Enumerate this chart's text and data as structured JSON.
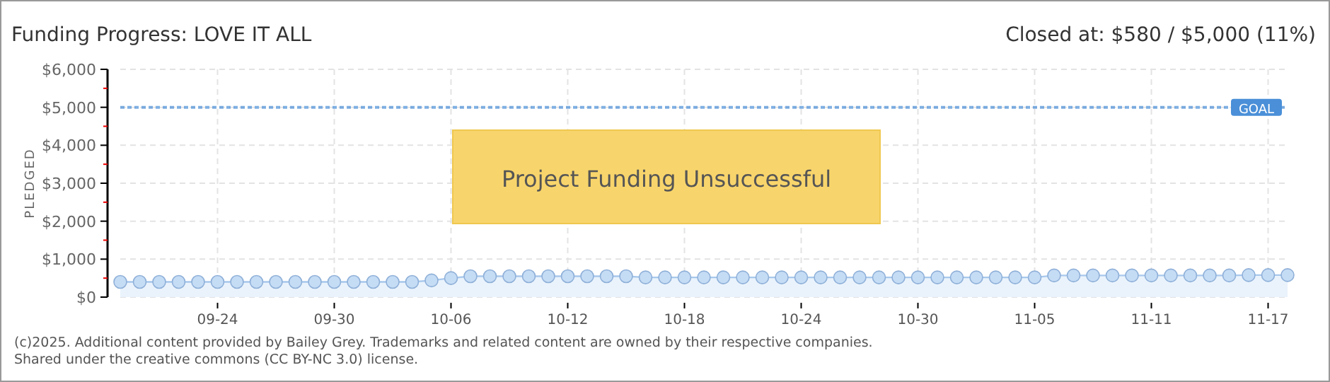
{
  "chart_data": {
    "type": "area",
    "title": "Funding Progress: LOVE IT ALL",
    "subtitle": "Closed at: $580 / $5,000 (11%)",
    "ylabel": "PLEDGED",
    "x": [
      "--09-19",
      "--09-20",
      "--09-21",
      "--09-22",
      "--09-23",
      "--09-24",
      "--09-25",
      "--09-26",
      "--09-27",
      "--09-28",
      "--09-29",
      "--09-30",
      "--10-01",
      "--10-02",
      "--10-03",
      "--10-04",
      "--10-05",
      "--10-06",
      "--10-07",
      "--10-08",
      "--10-09",
      "--10-10",
      "--10-11",
      "--10-12",
      "--10-13",
      "--10-14",
      "--10-15",
      "--10-16",
      "--10-17",
      "--10-18",
      "--10-19",
      "--10-20",
      "--10-21",
      "--10-22",
      "--10-23",
      "--10-24",
      "--10-25",
      "--10-26",
      "--10-27",
      "--10-28",
      "--10-29",
      "--10-30",
      "--10-31",
      "--11-01",
      "--11-02",
      "--11-03",
      "--11-04",
      "--11-05",
      "--11-06",
      "--11-07",
      "--11-08",
      "--11-09",
      "--11-10",
      "--11-11",
      "--11-12",
      "--11-13",
      "--11-14",
      "--11-15",
      "--11-16",
      "--11-17",
      "--11-18"
    ],
    "series": [
      {
        "color": "#c5dcf5",
        "values": [
          400,
          400,
          400,
          400,
          400,
          400,
          400,
          400,
          400,
          400,
          400,
          400,
          400,
          400,
          400,
          400,
          440,
          500,
          550,
          550,
          550,
          550,
          550,
          550,
          550,
          550,
          550,
          520,
          520,
          520,
          520,
          520,
          520,
          520,
          520,
          520,
          520,
          520,
          520,
          520,
          520,
          520,
          520,
          520,
          520,
          520,
          520,
          520,
          570,
          570,
          570,
          570,
          570,
          570,
          570,
          570,
          570,
          570,
          580,
          580,
          580
        ]
      }
    ],
    "xlim": [
      "--09-19",
      "--11-18"
    ],
    "xticks": [
      {
        "value": "--09-24",
        "label": "09-24"
      },
      {
        "value": "--09-30",
        "label": "09-30"
      },
      {
        "value": "--10-06",
        "label": "10-06"
      },
      {
        "value": "--10-12",
        "label": "10-12"
      },
      {
        "value": "--10-18",
        "label": "10-18"
      },
      {
        "value": "--10-24",
        "label": "10-24"
      },
      {
        "value": "--10-30",
        "label": "10-30"
      },
      {
        "value": "--11-05",
        "label": "11-05"
      },
      {
        "value": "--11-11",
        "label": "11-11"
      },
      {
        "value": "--11-17",
        "label": "11-17"
      }
    ],
    "ylim": [
      0,
      6000
    ],
    "yticks": [
      {
        "value": 0,
        "label": "$0"
      },
      {
        "value": 500,
        "label": null
      },
      {
        "value": 1000,
        "label": "$1,000"
      },
      {
        "value": 1500,
        "label": null
      },
      {
        "value": 2000,
        "label": "$2,000"
      },
      {
        "value": 2500,
        "label": null
      },
      {
        "value": 3000,
        "label": "$3,000"
      },
      {
        "value": 3500,
        "label": null
      },
      {
        "value": 4000,
        "label": "$4,000"
      },
      {
        "value": 4500,
        "label": null
      },
      {
        "value": 5000,
        "label": "$5,000"
      },
      {
        "value": 5500,
        "label": null
      },
      {
        "value": 6000,
        "label": "$6,000"
      }
    ],
    "grid": true,
    "marker": "circle",
    "ref_lines": [
      {
        "axis": "y",
        "value": 5000,
        "label": "GOAL",
        "color": "#4a8fd8",
        "line_style": "dotted"
      }
    ],
    "annotations": [
      "Project Funding Unsuccessful",
      "(c)2025. Additional content provided by Bailey Grey. Trademarks and related content are owned by their respective companies.",
      "Shared under the creative commons (CC BY-NC 3.0) license."
    ]
  }
}
